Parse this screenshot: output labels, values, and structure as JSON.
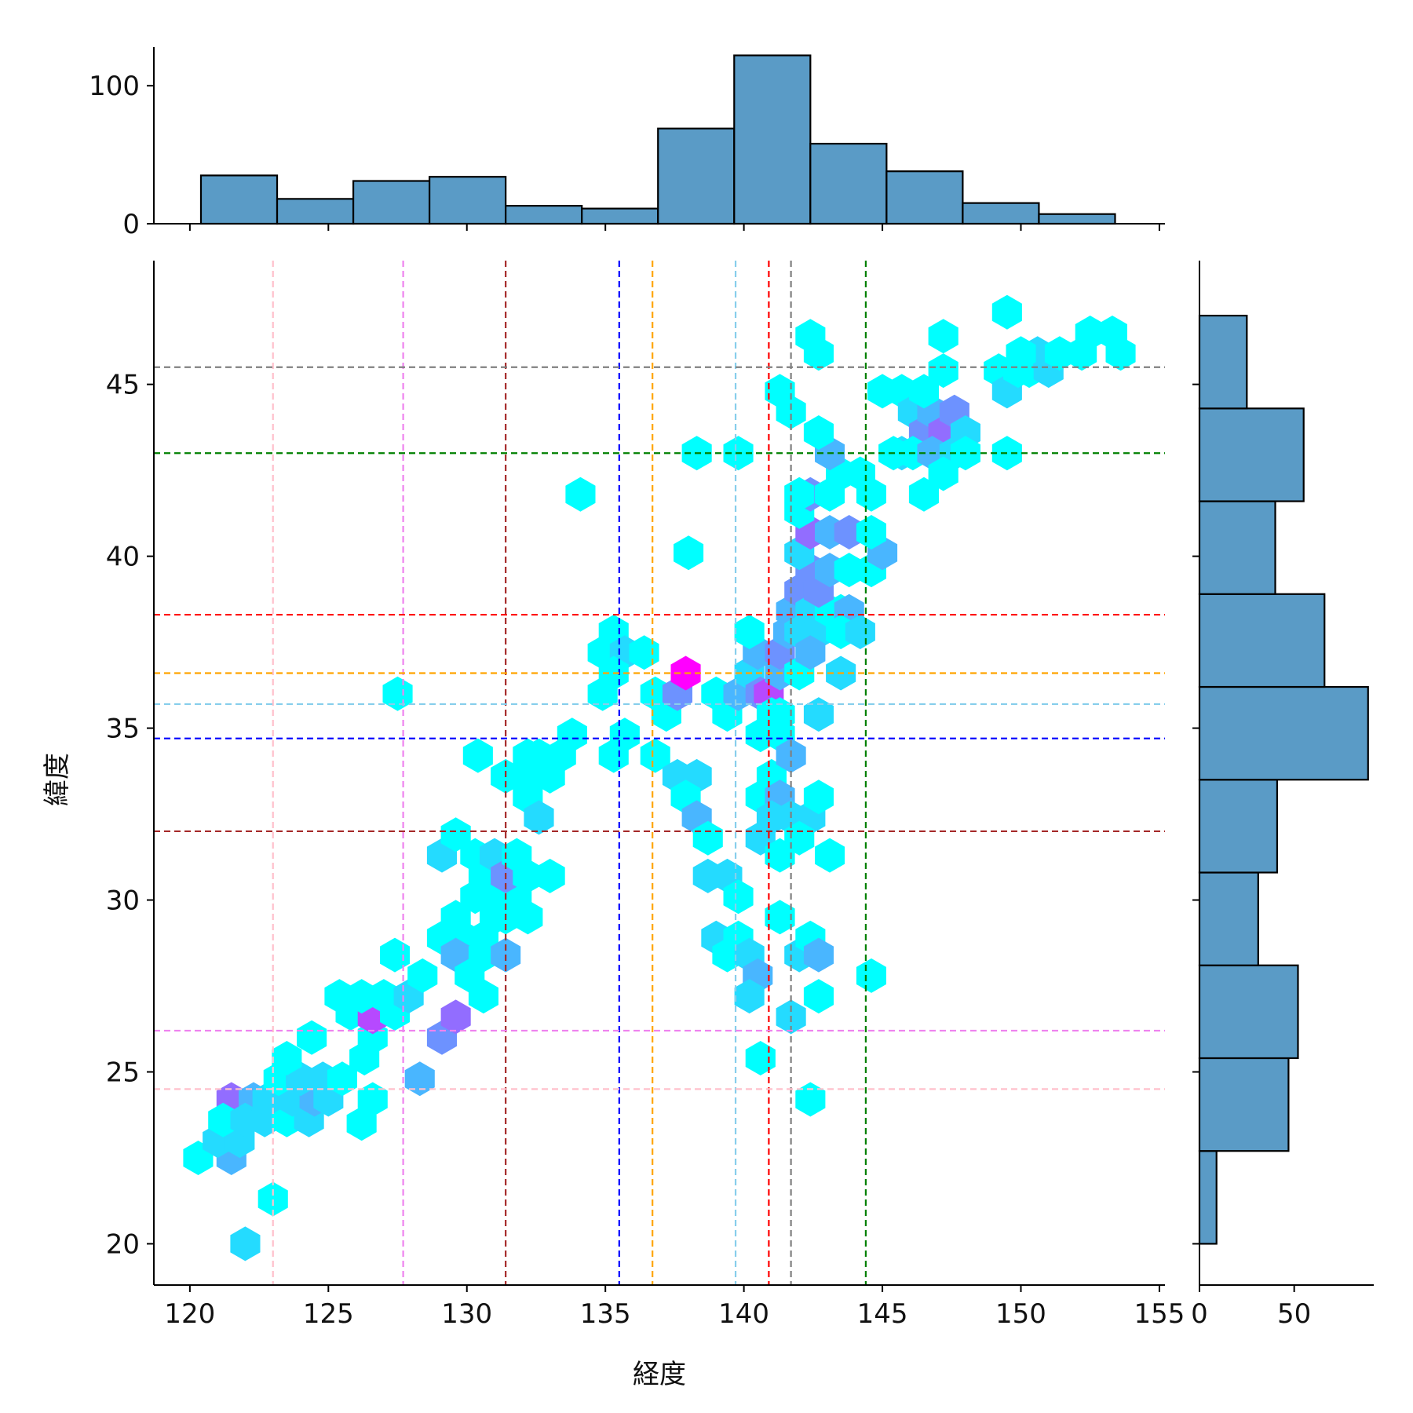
{
  "chart_data": {
    "type": "hexbin-jointplot",
    "xlabel": "経度",
    "ylabel": "緯度",
    "main_xlim": [
      118.7,
      155.2
    ],
    "main_ylim": [
      18.8,
      48.6
    ],
    "main_xticks": [
      120,
      125,
      130,
      135,
      140,
      145,
      150,
      155
    ],
    "main_xtick_labels": [
      "120",
      "125",
      "130",
      "135",
      "140",
      "145",
      "150",
      "155"
    ],
    "main_yticks": [
      20,
      25,
      30,
      35,
      40,
      45
    ],
    "main_ytick_labels": [
      "20",
      "25",
      "30",
      "35",
      "40",
      "45"
    ],
    "hist_x": {
      "bin_edges": [
        120.4,
        123.15,
        125.9,
        128.65,
        131.4,
        134.15,
        136.9,
        139.65,
        142.4,
        145.15,
        147.9,
        150.65,
        153.4
      ],
      "counts": [
        35,
        18,
        31,
        34,
        13,
        11,
        69,
        122,
        58,
        38,
        15,
        7
      ],
      "ylim": [
        0,
        128
      ],
      "yticks": [
        0,
        100
      ],
      "ytick_labels": [
        "0",
        "100"
      ]
    },
    "hist_y": {
      "bin_edges": [
        20.0,
        22.7,
        25.4,
        28.1,
        30.8,
        33.5,
        36.2,
        38.9,
        41.6,
        44.3,
        47.0
      ],
      "counts": [
        9,
        47,
        52,
        31,
        41,
        89,
        66,
        40,
        55,
        25
      ],
      "xlim": [
        0,
        92
      ],
      "xticks": [
        0,
        50
      ],
      "xtick_labels": [
        "0",
        "50"
      ]
    },
    "vlines": [
      {
        "x": 123.0,
        "color": "#ffc0cb"
      },
      {
        "x": 127.7,
        "color": "#ee82ee"
      },
      {
        "x": 131.4,
        "color": "#a52a2a"
      },
      {
        "x": 135.5,
        "color": "#0000ff"
      },
      {
        "x": 136.7,
        "color": "#ffa500"
      },
      {
        "x": 139.7,
        "color": "#87ceeb"
      },
      {
        "x": 140.9,
        "color": "#ff0000"
      },
      {
        "x": 141.7,
        "color": "#808080"
      },
      {
        "x": 144.4,
        "color": "#008000"
      }
    ],
    "hlines": [
      {
        "y": 45.5,
        "color": "#808080"
      },
      {
        "y": 43.0,
        "color": "#008000"
      },
      {
        "y": 38.3,
        "color": "#ff0000"
      },
      {
        "y": 36.6,
        "color": "#ffa500"
      },
      {
        "y": 35.7,
        "color": "#87ceeb"
      },
      {
        "y": 34.7,
        "color": "#0000ff"
      },
      {
        "y": 32.0,
        "color": "#a52a2a"
      },
      {
        "y": 26.2,
        "color": "#ee82ee"
      },
      {
        "y": 24.5,
        "color": "#ffc0cb"
      }
    ],
    "hexbins": [
      [
        122.0,
        20.0,
        2
      ],
      [
        123.0,
        21.3,
        1
      ],
      [
        120.3,
        22.5,
        1
      ],
      [
        121.5,
        22.5,
        3
      ],
      [
        121.0,
        23.0,
        2
      ],
      [
        121.8,
        23.0,
        2
      ],
      [
        121.5,
        24.2,
        5
      ],
      [
        122.3,
        24.2,
        3
      ],
      [
        121.2,
        23.6,
        1
      ],
      [
        122.0,
        23.6,
        2
      ],
      [
        122.7,
        23.6,
        2
      ],
      [
        123.5,
        23.6,
        1
      ],
      [
        124.3,
        23.6,
        2
      ],
      [
        122.8,
        24.2,
        2
      ],
      [
        123.7,
        24.2,
        2
      ],
      [
        124.5,
        24.2,
        3
      ],
      [
        125.0,
        24.2,
        2
      ],
      [
        123.2,
        24.8,
        1
      ],
      [
        124.0,
        24.8,
        2
      ],
      [
        124.8,
        24.8,
        2
      ],
      [
        125.5,
        24.8,
        1
      ],
      [
        123.5,
        25.4,
        1
      ],
      [
        126.3,
        25.4,
        1
      ],
      [
        124.4,
        26.0,
        1
      ],
      [
        126.6,
        26.0,
        1
      ],
      [
        125.8,
        26.7,
        1
      ],
      [
        126.6,
        26.6,
        6
      ],
      [
        127.4,
        26.7,
        1
      ],
      [
        125.4,
        27.2,
        1
      ],
      [
        126.2,
        27.2,
        1
      ],
      [
        127.0,
        27.2,
        1
      ],
      [
        127.9,
        27.2,
        2
      ],
      [
        128.4,
        27.8,
        1
      ],
      [
        127.4,
        28.4,
        1
      ],
      [
        126.2,
        23.5,
        1
      ],
      [
        126.6,
        24.2,
        1
      ],
      [
        128.3,
        24.8,
        3
      ],
      [
        129.1,
        26.0,
        4
      ],
      [
        129.6,
        26.6,
        5
      ],
      [
        129.1,
        28.9,
        1
      ],
      [
        129.9,
        28.9,
        1
      ],
      [
        130.6,
        28.9,
        1
      ],
      [
        130.0,
        28.4,
        1
      ],
      [
        129.6,
        28.4,
        3
      ],
      [
        130.6,
        28.4,
        1
      ],
      [
        131.4,
        28.4,
        3
      ],
      [
        130.1,
        27.8,
        1
      ],
      [
        130.6,
        27.2,
        1
      ],
      [
        131.4,
        29.5,
        1
      ],
      [
        132.2,
        29.5,
        1
      ],
      [
        130.3,
        30.1,
        1
      ],
      [
        131.0,
        30.1,
        1
      ],
      [
        131.8,
        30.1,
        1
      ],
      [
        131.0,
        29.5,
        1
      ],
      [
        129.6,
        29.5,
        1
      ],
      [
        129.1,
        31.3,
        2
      ],
      [
        129.6,
        31.9,
        1
      ],
      [
        130.3,
        31.3,
        1
      ],
      [
        130.6,
        30.7,
        1
      ],
      [
        131.0,
        31.3,
        2
      ],
      [
        131.4,
        30.7,
        4
      ],
      [
        131.8,
        31.3,
        1
      ],
      [
        132.2,
        30.7,
        1
      ],
      [
        133.0,
        30.7,
        1
      ],
      [
        131.4,
        33.6,
        1
      ],
      [
        132.2,
        33.0,
        1
      ],
      [
        132.2,
        33.6,
        1
      ],
      [
        132.6,
        34.2,
        1
      ],
      [
        132.2,
        34.2,
        1
      ],
      [
        132.6,
        32.4,
        2
      ],
      [
        133.0,
        33.6,
        1
      ],
      [
        133.4,
        34.2,
        1
      ],
      [
        133.8,
        34.8,
        1
      ],
      [
        130.4,
        34.2,
        1
      ],
      [
        127.5,
        36.0,
        1
      ],
      [
        134.1,
        41.8,
        1
      ],
      [
        134.9,
        37.2,
        1
      ],
      [
        135.3,
        37.8,
        1
      ],
      [
        135.7,
        37.2,
        2
      ],
      [
        135.3,
        36.6,
        1
      ],
      [
        134.9,
        36.0,
        1
      ],
      [
        135.3,
        34.2,
        1
      ],
      [
        135.7,
        34.8,
        1
      ],
      [
        136.4,
        37.2,
        1
      ],
      [
        136.8,
        36.0,
        1
      ],
      [
        137.2,
        35.4,
        1
      ],
      [
        137.6,
        36.0,
        4
      ],
      [
        137.9,
        36.6,
        8
      ],
      [
        136.8,
        34.2,
        1
      ],
      [
        137.6,
        33.6,
        2
      ],
      [
        138.3,
        33.6,
        2
      ],
      [
        137.9,
        33.0,
        1
      ],
      [
        138.3,
        32.4,
        3
      ],
      [
        138.7,
        31.8,
        1
      ],
      [
        138.7,
        30.7,
        2
      ],
      [
        139.4,
        30.7,
        2
      ],
      [
        139.8,
        30.1,
        1
      ],
      [
        139.0,
        28.9,
        2
      ],
      [
        139.8,
        28.9,
        1
      ],
      [
        139.4,
        28.4,
        1
      ],
      [
        140.2,
        28.4,
        2
      ],
      [
        140.5,
        27.8,
        3
      ],
      [
        140.2,
        27.2,
        2
      ],
      [
        140.6,
        25.4,
        1
      ],
      [
        138.3,
        43.0,
        1
      ],
      [
        138.0,
        40.1,
        1
      ],
      [
        139.8,
        43.0,
        1
      ],
      [
        139.0,
        36.0,
        1
      ],
      [
        139.4,
        35.4,
        1
      ],
      [
        139.8,
        36.0,
        3
      ],
      [
        140.2,
        36.6,
        2
      ],
      [
        140.5,
        37.2,
        3
      ],
      [
        140.2,
        37.8,
        1
      ],
      [
        140.6,
        36.0,
        4
      ],
      [
        140.9,
        36.0,
        6
      ],
      [
        141.3,
        36.6,
        3
      ],
      [
        141.3,
        37.2,
        4
      ],
      [
        141.6,
        37.8,
        3
      ],
      [
        141.3,
        35.4,
        1
      ],
      [
        141.0,
        35.4,
        1
      ],
      [
        140.6,
        34.8,
        1
      ],
      [
        141.3,
        34.8,
        1
      ],
      [
        141.0,
        33.6,
        1
      ],
      [
        140.6,
        33.0,
        1
      ],
      [
        141.3,
        33.0,
        3
      ],
      [
        141.0,
        32.4,
        2
      ],
      [
        140.6,
        31.8,
        2
      ],
      [
        141.7,
        32.4,
        2
      ],
      [
        142.4,
        32.4,
        2
      ],
      [
        142.0,
        31.8,
        1
      ],
      [
        142.7,
        33.0,
        1
      ],
      [
        141.3,
        31.3,
        1
      ],
      [
        141.7,
        34.2,
        3
      ],
      [
        142.7,
        35.4,
        2
      ],
      [
        142.0,
        36.6,
        1
      ],
      [
        141.7,
        38.4,
        3
      ],
      [
        142.0,
        39.0,
        4
      ],
      [
        142.4,
        39.6,
        4
      ],
      [
        142.4,
        38.4,
        2
      ],
      [
        142.0,
        37.8,
        2
      ],
      [
        142.7,
        37.8,
        2
      ],
      [
        142.4,
        37.2,
        3
      ],
      [
        143.1,
        38.4,
        1
      ],
      [
        143.5,
        38.4,
        1
      ],
      [
        143.8,
        38.4,
        3
      ],
      [
        143.5,
        37.8,
        1
      ],
      [
        144.2,
        37.8,
        2
      ],
      [
        143.5,
        36.6,
        2
      ],
      [
        142.7,
        39.0,
        4
      ],
      [
        143.1,
        39.6,
        3
      ],
      [
        143.8,
        39.6,
        1
      ],
      [
        144.6,
        39.6,
        1
      ],
      [
        145.0,
        40.1,
        3
      ],
      [
        142.0,
        40.1,
        2
      ],
      [
        142.4,
        40.7,
        5
      ],
      [
        143.1,
        40.7,
        3
      ],
      [
        143.8,
        40.7,
        4
      ],
      [
        144.6,
        40.7,
        1
      ],
      [
        142.0,
        41.3,
        1
      ],
      [
        142.4,
        41.8,
        4
      ],
      [
        142.0,
        41.8,
        1
      ],
      [
        143.1,
        41.8,
        1
      ],
      [
        143.5,
        42.4,
        1
      ],
      [
        143.1,
        43.0,
        3
      ],
      [
        142.7,
        43.6,
        1
      ],
      [
        144.2,
        42.4,
        1
      ],
      [
        144.6,
        41.8,
        1
      ],
      [
        141.3,
        44.8,
        1
      ],
      [
        141.7,
        44.2,
        1
      ],
      [
        142.4,
        46.4,
        1
      ],
      [
        142.7,
        45.9,
        1
      ],
      [
        141.3,
        29.5,
        1
      ],
      [
        142.0,
        28.4,
        2
      ],
      [
        142.4,
        28.9,
        1
      ],
      [
        142.7,
        28.4,
        3
      ],
      [
        141.7,
        26.6,
        2
      ],
      [
        142.7,
        27.2,
        1
      ],
      [
        144.6,
        27.8,
        1
      ],
      [
        142.4,
        24.2,
        1
      ],
      [
        143.1,
        31.3,
        1
      ],
      [
        145.0,
        44.8,
        1
      ],
      [
        145.7,
        44.8,
        1
      ],
      [
        146.1,
        44.2,
        2
      ],
      [
        146.5,
        43.6,
        4
      ],
      [
        146.8,
        44.2,
        3
      ],
      [
        147.2,
        43.6,
        5
      ],
      [
        147.6,
        44.2,
        4
      ],
      [
        148.0,
        43.6,
        2
      ],
      [
        145.7,
        43.0,
        2
      ],
      [
        146.1,
        43.0,
        1
      ],
      [
        146.8,
        43.0,
        3
      ],
      [
        147.6,
        43.0,
        2
      ],
      [
        147.2,
        42.4,
        1
      ],
      [
        146.5,
        41.8,
        1
      ],
      [
        148.0,
        43.0,
        1
      ],
      [
        145.4,
        43.0,
        1
      ],
      [
        147.2,
        45.4,
        1
      ],
      [
        146.5,
        44.8,
        1
      ],
      [
        147.2,
        46.4,
        1
      ],
      [
        149.5,
        43.0,
        1
      ],
      [
        149.2,
        45.4,
        1
      ],
      [
        150.3,
        45.4,
        1
      ],
      [
        150.6,
        45.9,
        2
      ],
      [
        151.0,
        45.4,
        2
      ],
      [
        151.4,
        45.9,
        1
      ],
      [
        150.0,
        45.9,
        1
      ],
      [
        149.5,
        44.8,
        2
      ],
      [
        149.5,
        47.1,
        1
      ],
      [
        152.2,
        45.9,
        1
      ],
      [
        152.5,
        46.5,
        1
      ],
      [
        153.3,
        46.5,
        1
      ],
      [
        153.6,
        45.9,
        1
      ],
      [
        149.9,
        45.4,
        1
      ]
    ]
  }
}
